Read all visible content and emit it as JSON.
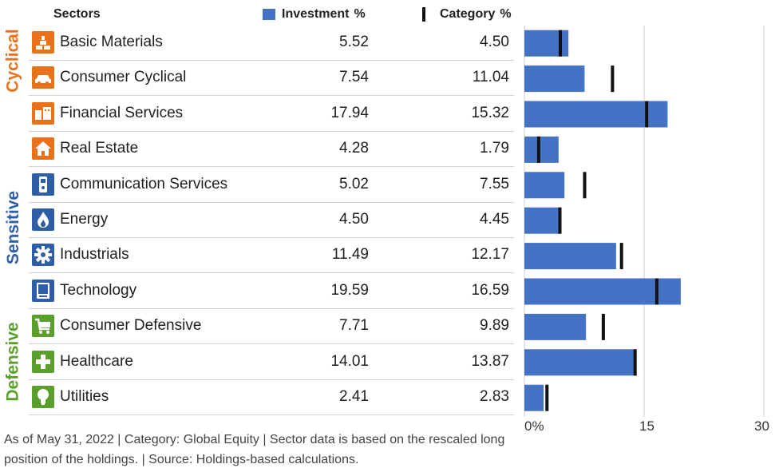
{
  "headers": {
    "sectors": "Sectors",
    "investment": "Investment",
    "category": "Category",
    "pct": "%"
  },
  "groups": {
    "cyclical": "Cyclical",
    "sensitive": "Sensitive",
    "defensive": "Defensive"
  },
  "colors": {
    "investment_bar": "#4472c4",
    "category_marker": "#111111",
    "cyclical": "#e8711a",
    "sensitive": "#2f5ea8",
    "defensive": "#5a9e2c"
  },
  "rows": [
    {
      "name": "Basic Materials",
      "investment": "5.52",
      "category": "4.50",
      "icon": "bricks-icon",
      "group": "cyclical"
    },
    {
      "name": "Consumer Cyclical",
      "investment": "7.54",
      "category": "11.04",
      "icon": "car-icon",
      "group": "cyclical"
    },
    {
      "name": "Financial Services",
      "investment": "17.94",
      "category": "15.32",
      "icon": "bank-icon",
      "group": "cyclical"
    },
    {
      "name": "Real Estate",
      "investment": "4.28",
      "category": "1.79",
      "icon": "house-icon",
      "group": "cyclical"
    },
    {
      "name": "Communication Services",
      "investment": "5.02",
      "category": "7.55",
      "icon": "phone-icon",
      "group": "sensitive"
    },
    {
      "name": "Energy",
      "investment": "4.50",
      "category": "4.45",
      "icon": "flame-icon",
      "group": "sensitive"
    },
    {
      "name": "Industrials",
      "investment": "11.49",
      "category": "12.17",
      "icon": "gear-icon",
      "group": "sensitive"
    },
    {
      "name": "Technology",
      "investment": "19.59",
      "category": "16.59",
      "icon": "computer-icon",
      "group": "sensitive"
    },
    {
      "name": "Consumer Defensive",
      "investment": "7.71",
      "category": "9.89",
      "icon": "cart-icon",
      "group": "defensive"
    },
    {
      "name": "Healthcare",
      "investment": "14.01",
      "category": "13.87",
      "icon": "cross-icon",
      "group": "defensive"
    },
    {
      "name": "Utilities",
      "investment": "2.41",
      "category": "2.83",
      "icon": "bulb-icon",
      "group": "defensive"
    }
  ],
  "chart_data": {
    "type": "bar",
    "orientation": "horizontal",
    "categories": [
      "Basic Materials",
      "Consumer Cyclical",
      "Financial Services",
      "Real Estate",
      "Communication Services",
      "Energy",
      "Industrials",
      "Technology",
      "Consumer Defensive",
      "Healthcare",
      "Utilities"
    ],
    "series": [
      {
        "name": "Investment",
        "style": "bar",
        "values": [
          5.52,
          7.54,
          17.94,
          4.28,
          5.02,
          4.5,
          11.49,
          19.59,
          7.71,
          14.01,
          2.41
        ]
      },
      {
        "name": "Category",
        "style": "marker",
        "values": [
          4.5,
          11.04,
          15.32,
          1.79,
          7.55,
          4.45,
          12.17,
          16.59,
          9.89,
          13.87,
          2.83
        ]
      }
    ],
    "xlim": [
      0,
      30
    ],
    "xticks": [
      "0%",
      "15",
      "30"
    ],
    "grid": true
  },
  "footnote": "As of May 31, 2022 | Category: Global Equity | Sector data is based on the rescaled long position of the holdings. | Source: Holdings-based calculations."
}
